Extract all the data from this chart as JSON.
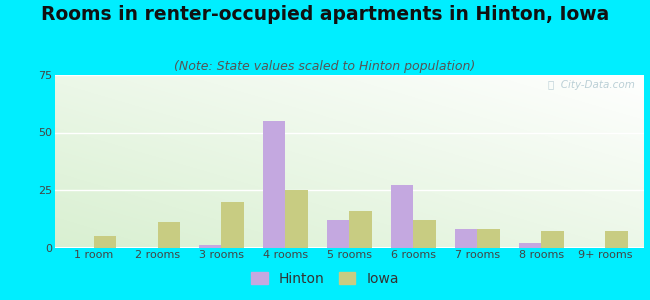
{
  "title": "Rooms in renter-occupied apartments in Hinton, Iowa",
  "subtitle": "(Note: State values scaled to Hinton population)",
  "categories": [
    "1 room",
    "2 rooms",
    "3 rooms",
    "4 rooms",
    "5 rooms",
    "6 rooms",
    "7 rooms",
    "8 rooms",
    "9+ rooms"
  ],
  "hinton_values": [
    0,
    0,
    1,
    55,
    12,
    27,
    8,
    2,
    0
  ],
  "iowa_values": [
    5,
    11,
    20,
    25,
    16,
    12,
    8,
    7,
    7
  ],
  "hinton_color": "#c4a8e0",
  "iowa_color": "#c8cc82",
  "background_outer": "#00eeff",
  "plot_bg_top": "#f5faf5",
  "plot_bg_bottom": "#d8e8c8",
  "ylim": [
    0,
    75
  ],
  "yticks": [
    0,
    25,
    50,
    75
  ],
  "bar_width": 0.35,
  "title_fontsize": 13.5,
  "subtitle_fontsize": 9,
  "tick_fontsize": 8,
  "legend_fontsize": 10,
  "watermark_text": "ⓘ  City-Data.com",
  "watermark_color": "#b0c8d0"
}
